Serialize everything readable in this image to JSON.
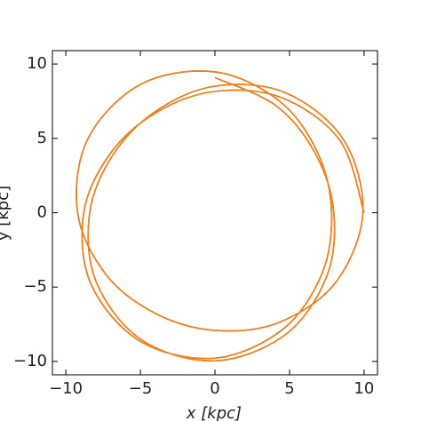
{
  "chart_data": {
    "type": "line",
    "xlabel": "x [kpc]",
    "ylabel": "y [kpc]",
    "xlim": [
      -10.9,
      10.9
    ],
    "ylim": [
      -10.9,
      10.9
    ],
    "xticks": [
      {
        "value": -10,
        "label": "−10"
      },
      {
        "value": -5,
        "label": "−5"
      },
      0,
      5,
      10
    ],
    "yticks": [
      {
        "value": -10,
        "label": "−10"
      },
      {
        "value": -5,
        "label": "−5"
      },
      0,
      5,
      10
    ],
    "grid": false,
    "series": [
      {
        "color": "#1f77b4",
        "x": [
          10,
          8.39,
          4.47,
          0,
          -3.9,
          -6.98,
          -8.8,
          -8.31,
          -5.0,
          0,
          4.54,
          7.16,
          7.82,
          6.91,
          4.33,
          0,
          -4.99,
          -8.54,
          -9.21,
          -7.27,
          -3.93,
          0,
          4.27,
          8.1,
          9.92,
          8.59,
          4.67,
          0,
          -3.95,
          -6.81,
          -8.4,
          -7.98,
          -4.93,
          0,
          4.73,
          7.48,
          7.97,
          6.77,
          4.14,
          0
        ],
        "values": [
          0,
          4.85,
          7.74,
          8.16,
          6.76,
          4.03,
          0,
          -4.8,
          -8.65,
          -9.78,
          -7.85,
          -4.14,
          0,
          3.99,
          7.5,
          9.47,
          8.63,
          4.93,
          0,
          -4.2,
          -6.8,
          -7.91,
          -7.39,
          -4.68,
          0,
          4.96,
          8.09,
          8.51,
          6.84,
          3.93,
          0,
          -4.61,
          -8.54,
          -9.96,
          -8.19,
          -4.32,
          0,
          3.91,
          7.17,
          9.09
        ]
      },
      {
        "color": "#ff7f0e",
        "x": [
          10,
          8.39,
          4.47,
          0,
          -3.9,
          -6.98,
          -8.8,
          -8.31,
          -5.0,
          0,
          4.54,
          7.16,
          7.82,
          6.91,
          4.33,
          0,
          -4.99,
          -8.54,
          -9.21,
          -7.27,
          -3.93,
          0,
          4.27,
          8.1,
          9.92,
          8.59,
          4.67,
          0,
          -3.95,
          -6.81,
          -8.4,
          -7.98,
          -4.93,
          0,
          4.73,
          7.48,
          7.97,
          6.77,
          4.14,
          0
        ],
        "values": [
          0,
          4.85,
          7.74,
          8.16,
          6.76,
          4.03,
          0,
          -4.8,
          -8.65,
          -9.78,
          -7.85,
          -4.14,
          0,
          3.99,
          7.5,
          9.47,
          8.63,
          4.93,
          0,
          -4.2,
          -6.8,
          -7.91,
          -7.39,
          -4.68,
          0,
          4.96,
          8.09,
          8.51,
          6.84,
          3.93,
          0,
          -4.61,
          -8.54,
          -9.96,
          -8.19,
          -4.32,
          0,
          3.91,
          7.17,
          9.09
        ]
      }
    ]
  }
}
